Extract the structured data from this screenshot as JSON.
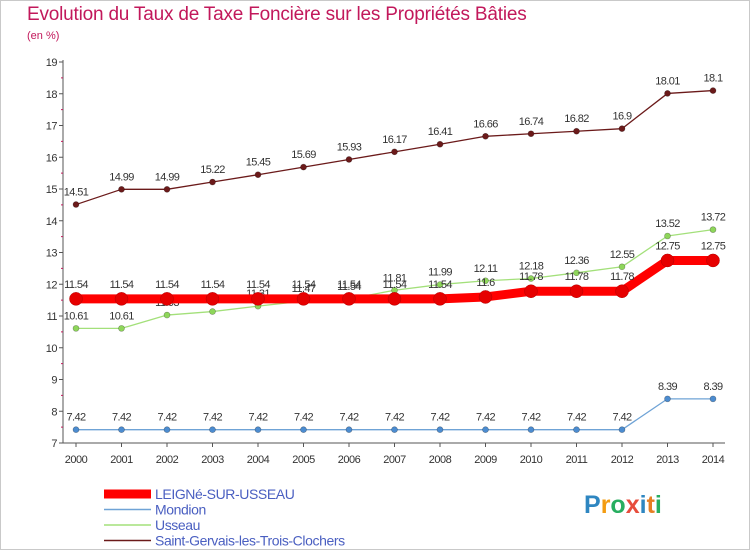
{
  "header": {
    "title": "Evolution du Taux de Taxe Foncière sur les Propriétés Bâties",
    "unit": "(en %)"
  },
  "logo": {
    "text": "Proxiti",
    "letters": [
      "P",
      "r",
      "o",
      "x",
      "i",
      "t",
      "i"
    ],
    "colors": [
      "#2e86c1",
      "#f39c12",
      "#27ae60",
      "#e74c3c",
      "#2e86c1",
      "#e67e22",
      "#27ae60"
    ]
  },
  "chart_data": {
    "type": "line",
    "title": "Evolution du Taux de Taxe Foncière sur les Propriétés Bâties",
    "ylabel": "(en %)",
    "xlabel": "",
    "x": [
      "2000",
      "2001",
      "2002",
      "2003",
      "2004",
      "2005",
      "2006",
      "2007",
      "2008",
      "2009",
      "2010",
      "2011",
      "2012",
      "2013",
      "2014"
    ],
    "ylim": [
      7,
      19
    ],
    "yticks": [
      "7",
      "8",
      "9",
      "10",
      "11",
      "12",
      "13",
      "14",
      "15",
      "16",
      "17",
      "18",
      "19"
    ],
    "grid": false,
    "legend_position": "bottom-left",
    "series": [
      {
        "name": "Saint-Gervais-les-Trois-Clochers",
        "color": "#6b1a1a",
        "marker": "#6b1a1a",
        "values": [
          14.51,
          14.99,
          14.99,
          15.22,
          15.45,
          15.69,
          15.93,
          16.17,
          16.41,
          16.66,
          16.74,
          16.82,
          16.9,
          18.01,
          18.1
        ],
        "labels": [
          "14.51",
          "14.99",
          "14.99",
          "15.22",
          "15.45",
          "15.69",
          "15.93",
          "16.17",
          "16.41",
          "16.66",
          "16.74",
          "16.82",
          "16.9",
          "18.01",
          "18.1"
        ]
      },
      {
        "name": "Usseau",
        "color": "#a3e07a",
        "marker": "#8ed65a",
        "values": [
          10.61,
          10.61,
          11.03,
          11.14,
          11.31,
          11.47,
          11.54,
          11.81,
          11.99,
          12.11,
          12.18,
          12.36,
          12.55,
          13.52,
          13.72
        ],
        "labels": [
          "10.61",
          "10.61",
          "11.03",
          "11.14",
          "11.31",
          "11.47",
          "11.54",
          "11.81",
          "11.99",
          "12.11",
          "12.18",
          "12.36",
          "12.55",
          "13.52",
          "13.72"
        ]
      },
      {
        "name": "Mondion",
        "color": "#6fa3d6",
        "marker": "#4c8cd0",
        "values": [
          7.42,
          7.42,
          7.42,
          7.42,
          7.42,
          7.42,
          7.42,
          7.42,
          7.42,
          7.42,
          7.42,
          7.42,
          7.42,
          8.39,
          8.39
        ],
        "labels": [
          "7.42",
          "7.42",
          "7.42",
          "7.42",
          "7.42",
          "7.42",
          "7.42",
          "7.42",
          "7.42",
          "7.42",
          "7.42",
          "7.42",
          "7.42",
          "8.39",
          "8.39"
        ]
      },
      {
        "name": "LEIGNé-SUR-USSEAU",
        "color": "#ff0000",
        "marker": "#e60000",
        "values": [
          11.54,
          11.54,
          11.54,
          11.54,
          11.54,
          11.54,
          11.54,
          11.54,
          11.54,
          11.6,
          11.78,
          11.78,
          11.78,
          12.75,
          12.75
        ],
        "labels": [
          "11.54",
          "11.54",
          "11.54",
          "11.54",
          "11.54",
          "11.54",
          "11.54",
          "11.54",
          "11.54",
          "11.6",
          "11.78",
          "11.78",
          "11.78",
          "12.75",
          "12.75"
        ]
      }
    ]
  }
}
